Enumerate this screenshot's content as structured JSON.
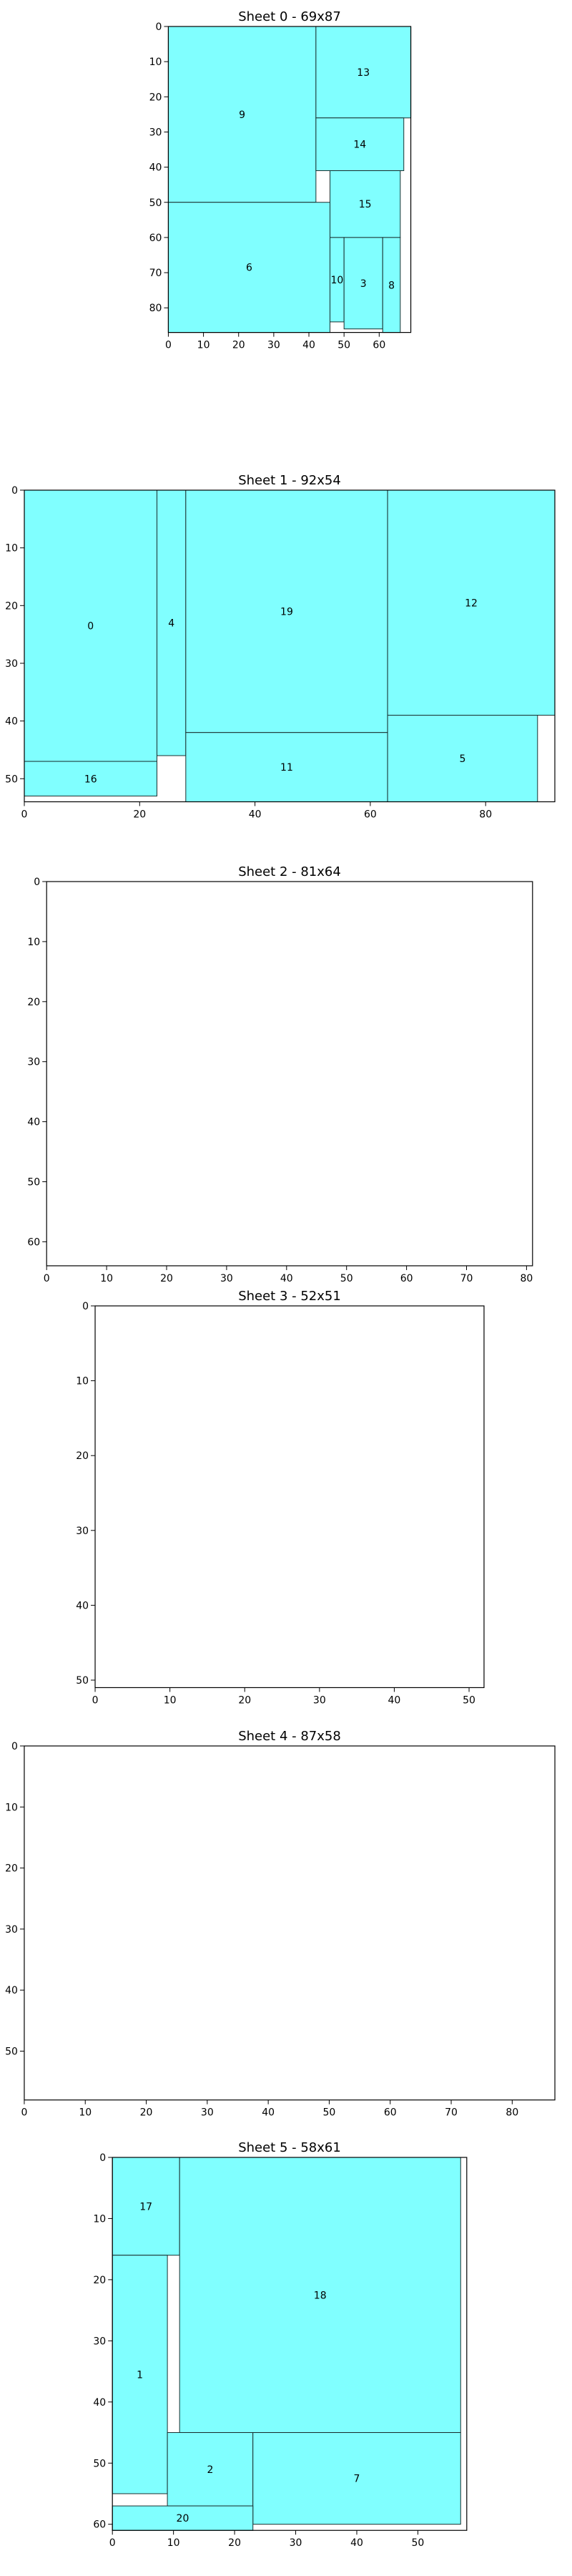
{
  "chart_data": [
    {
      "type": "rectangle-packing",
      "title": "Sheet 0 - 69x87",
      "width": 69,
      "height": 87,
      "xticks": [
        0,
        10,
        20,
        30,
        40,
        50,
        60
      ],
      "yticks": [
        0,
        10,
        20,
        30,
        40,
        50,
        60,
        70,
        80
      ],
      "pieces": [
        {
          "id": "9",
          "x": 0,
          "y": 0,
          "w": 42,
          "h": 50
        },
        {
          "id": "13",
          "x": 42,
          "y": 0,
          "w": 27,
          "h": 26
        },
        {
          "id": "14",
          "x": 42,
          "y": 26,
          "w": 25,
          "h": 15
        },
        {
          "id": "15",
          "x": 46,
          "y": 41,
          "w": 20,
          "h": 19
        },
        {
          "id": "6",
          "x": 0,
          "y": 50,
          "w": 46,
          "h": 37
        },
        {
          "id": "10",
          "x": 46,
          "y": 60,
          "w": 4,
          "h": 24
        },
        {
          "id": "3",
          "x": 50,
          "y": 60,
          "w": 11,
          "h": 26
        },
        {
          "id": "8",
          "x": 61,
          "y": 60,
          "w": 5,
          "h": 27
        }
      ]
    },
    {
      "type": "rectangle-packing",
      "title": "Sheet 1 - 92x54",
      "width": 92,
      "height": 54,
      "xticks": [
        0,
        20,
        40,
        60,
        80
      ],
      "yticks": [
        0,
        10,
        20,
        30,
        40,
        50
      ],
      "pieces": [
        {
          "id": "0",
          "x": 0,
          "y": 0,
          "w": 23,
          "h": 47
        },
        {
          "id": "16",
          "x": 0,
          "y": 47,
          "w": 23,
          "h": 6
        },
        {
          "id": "4",
          "x": 23,
          "y": 0,
          "w": 5,
          "h": 46
        },
        {
          "id": "19",
          "x": 28,
          "y": 0,
          "w": 35,
          "h": 42
        },
        {
          "id": "11",
          "x": 28,
          "y": 42,
          "w": 35,
          "h": 12
        },
        {
          "id": "12",
          "x": 63,
          "y": 0,
          "w": 29,
          "h": 39
        },
        {
          "id": "5",
          "x": 63,
          "y": 39,
          "w": 26,
          "h": 15
        }
      ]
    },
    {
      "type": "rectangle-packing",
      "title": "Sheet 2 - 81x64",
      "width": 81,
      "height": 64,
      "xticks": [
        0,
        10,
        20,
        30,
        40,
        50,
        60,
        70,
        80
      ],
      "yticks": [
        0,
        10,
        20,
        30,
        40,
        50,
        60
      ],
      "pieces": []
    },
    {
      "type": "rectangle-packing",
      "title": "Sheet 3 - 52x51",
      "width": 52,
      "height": 51,
      "xticks": [
        0,
        10,
        20,
        30,
        40,
        50
      ],
      "yticks": [
        0,
        10,
        20,
        30,
        40,
        50
      ],
      "pieces": []
    },
    {
      "type": "rectangle-packing",
      "title": "Sheet 4 - 87x58",
      "width": 87,
      "height": 58,
      "xticks": [
        0,
        10,
        20,
        30,
        40,
        50,
        60,
        70,
        80
      ],
      "yticks": [
        0,
        10,
        20,
        30,
        40,
        50
      ],
      "pieces": []
    },
    {
      "type": "rectangle-packing",
      "title": "Sheet 5 - 58x61",
      "width": 58,
      "height": 61,
      "xticks": [
        0,
        10,
        20,
        30,
        40,
        50
      ],
      "yticks": [
        0,
        10,
        20,
        30,
        40,
        50,
        60
      ],
      "pieces": [
        {
          "id": "17",
          "x": 0,
          "y": 0,
          "w": 11,
          "h": 16
        },
        {
          "id": "18",
          "x": 11,
          "y": 0,
          "w": 46,
          "h": 45
        },
        {
          "id": "1",
          "x": 0,
          "y": 16,
          "w": 9,
          "h": 39
        },
        {
          "id": "2",
          "x": 9,
          "y": 45,
          "w": 14,
          "h": 12
        },
        {
          "id": "7",
          "x": 23,
          "y": 45,
          "w": 34,
          "h": 15
        },
        {
          "id": "20",
          "x": 0,
          "y": 57,
          "w": 23,
          "h": 4
        }
      ]
    }
  ],
  "colors": {
    "piece_fill": "#80ffff",
    "piece_edge": "#1a2f2f",
    "frame": "#000000"
  }
}
